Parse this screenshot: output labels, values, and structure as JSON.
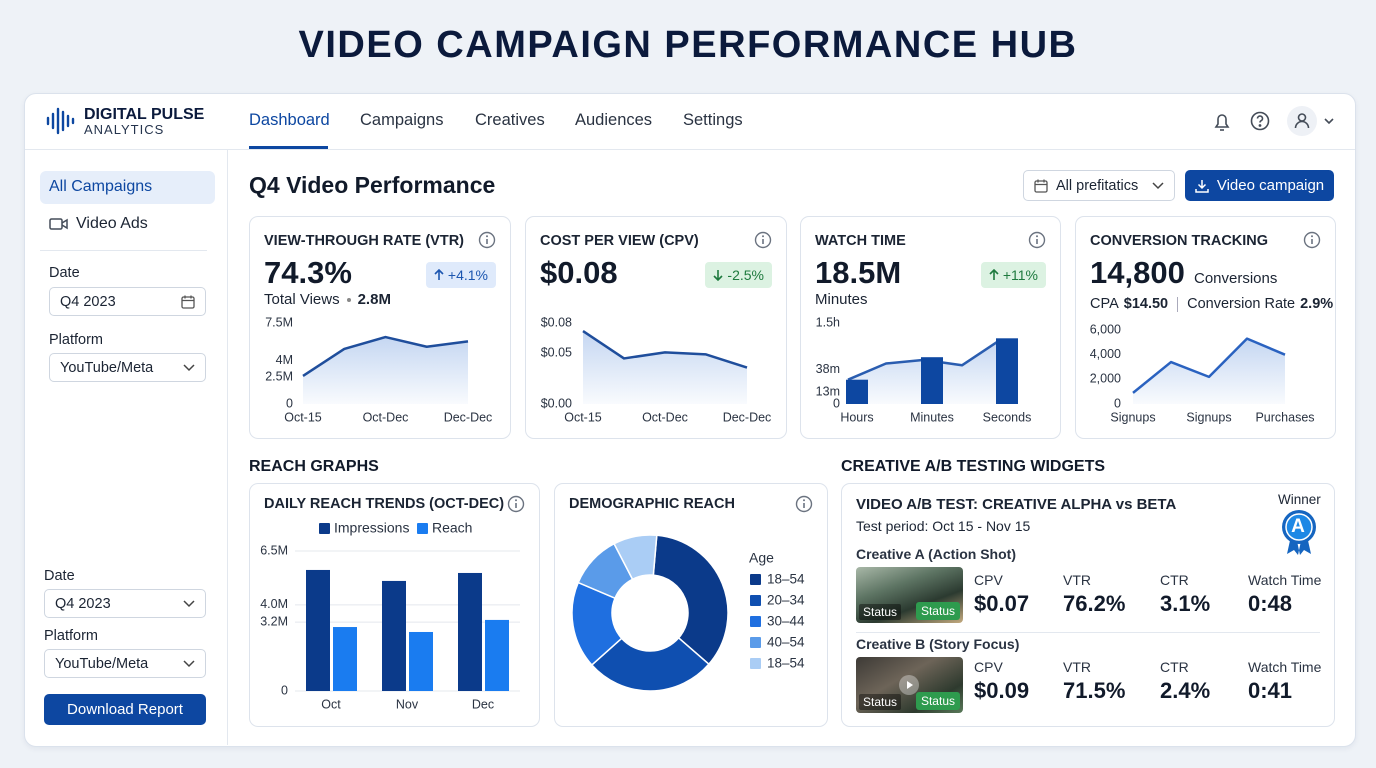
{
  "title": "VIDEO CAMPAIGN PERFORMANCE HUB",
  "header": {
    "brand": "DIGITAL PULSE",
    "brand_sub": "ANALYTICS",
    "nav": [
      "Dashboard",
      "Campaigns",
      "Creatives",
      "Audiences",
      "Settings"
    ]
  },
  "sidebar": {
    "menu": [
      "All Campaigns",
      "Video Ads"
    ],
    "filters": [
      {
        "label": "Date",
        "value": "Q4 2023"
      },
      {
        "label": "Platform",
        "value": "YouTube/Meta"
      },
      {
        "label": "Date",
        "value": "Q4 2023"
      },
      {
        "label": "Platform",
        "value": "YouTube/Meta"
      }
    ],
    "button": "Download Report"
  },
  "main": {
    "title": "Q4 Video Performance",
    "filter": "All prefitatics",
    "button": "Video campaign"
  },
  "kpis": [
    {
      "title": "VIEW-THROUGH RATE (VTR)",
      "value": "74.3%",
      "delta": "+4.1%",
      "note": "Total Views",
      "note_value": "2.8M",
      "chart": {
        "type": "line",
        "categories": [
          "Oct-15",
          null,
          "Oct-Dec",
          null,
          "Dec-Dec"
        ],
        "values": [
          2600000,
          5100000,
          6200000,
          5300000,
          5800000
        ],
        "color": "#1f4e9c",
        "ylim": [
          0,
          7500000
        ],
        "yticks": [
          0,
          {
            "value": 2500000,
            "label": "2.5M"
          },
          {
            "value": 4000000,
            "label": "4M"
          },
          {
            "value": 7500000,
            "label": "7.5M"
          }
        ]
      }
    },
    {
      "title": "COST PER VIEW (CPV)",
      "value": "$0.08",
      "delta": "-2.5%",
      "chart": {
        "type": "line",
        "categories": [
          "Oct-15",
          null,
          "Oct-Dec",
          null,
          "Dec-Dec"
        ],
        "values": [
          0.072,
          0.045,
          0.051,
          0.049,
          0.036
        ],
        "color": "#1f4e9c",
        "ylim": [
          0,
          0.08
        ],
        "yticks": [
          {
            "value": 0,
            "label": "$0.00"
          },
          {
            "value": 0.05,
            "label": "$0.05"
          },
          {
            "value": 0.08,
            "label": "$0.08"
          }
        ]
      }
    },
    {
      "title": "WATCH TIME",
      "value": "18.5M",
      "delta": "+11%",
      "note": "Minutes",
      "chart": {
        "type": "combo",
        "categories": [
          "Hours",
          "Minutes",
          "Seconds"
        ],
        "values": [
          27,
          52,
          73
        ],
        "color": "#0d47a1",
        "line_values": [
          27,
          45,
          49,
          43,
          71
        ],
        "line_color": "#2a5db0",
        "ylim": [
          0,
          90
        ],
        "yticks": [
          0,
          {
            "value": 13,
            "label": "13m"
          },
          {
            "value": 38,
            "label": "38m"
          },
          {
            "value": 90,
            "label": "1.5h"
          }
        ]
      }
    },
    {
      "title": "CONVERSION TRACKING",
      "value": "14,800",
      "unit": "Conversions",
      "cpa_label": "CPA",
      "cpa": "$14.50",
      "rate_label": "Conversion Rate",
      "rate": "2.9%",
      "chart": {
        "type": "line",
        "categories": [
          "Signups",
          null,
          "Signups",
          null,
          "Purchases"
        ],
        "values": [
          900,
          3400,
          2200,
          5300,
          4000
        ],
        "color": "#2a62c0",
        "ylim": [
          0,
          6000
        ],
        "yticks": [
          0,
          {
            "value": 2000,
            "label": "2,000"
          },
          {
            "value": 4000,
            "label": "4,000"
          },
          {
            "value": 6000,
            "label": "6,000"
          }
        ]
      }
    }
  ],
  "reach": {
    "section": "REACH GRAPHS",
    "daily": {
      "type": "bar",
      "title": "DAILY REACH TRENDS (OCT-DEC)",
      "categories": [
        "Oct",
        "Nov",
        "Dec"
      ],
      "series": [
        {
          "name": "Impressions",
          "color": "#0b3a8a",
          "values": [
            5620000,
            5110000,
            5480000
          ]
        },
        {
          "name": "Reach",
          "color": "#1a7cf0",
          "values": [
            2970000,
            2740000,
            3300000
          ]
        }
      ],
      "ylim": [
        0,
        6500000
      ],
      "yticks": [
        0,
        {
          "value": 3200000,
          "label": "3.2M"
        },
        {
          "value": 4000000,
          "label": "4.0M"
        },
        {
          "value": 6500000,
          "label": "6.5M"
        }
      ],
      "grid": true
    },
    "demographic": {
      "type": "pie",
      "title": "DEMOGRAPHIC REACH",
      "legend_title": "Age",
      "categories": [
        "18–54",
        "20–34",
        "30–44",
        "40–54",
        "18–54"
      ],
      "values": [
        35,
        27,
        18,
        11,
        9
      ],
      "colors": [
        "#0b3a8a",
        "#0f4fb0",
        "#1f6fe0",
        "#5a9be9",
        "#aacdf5"
      ]
    }
  },
  "ab": {
    "section": "CREATIVE A/B TESTING WIDGETS",
    "title": "VIDEO A/B TEST: CREATIVE ALPHA vs BETA",
    "period": "Test period: Oct 15 - Nov 15",
    "winner_label": "Winner",
    "winner": "A",
    "creatives": [
      {
        "name": "Creative A (Action Shot)",
        "status": [
          "Status",
          "Status"
        ],
        "metrics": [
          {
            "label": "CPV",
            "value": "$0.07"
          },
          {
            "label": "VTR",
            "value": "76.2%"
          },
          {
            "label": "CTR",
            "value": "3.1%"
          },
          {
            "label": "Watch Time",
            "value": "0:48"
          }
        ]
      },
      {
        "name": "Creative B (Story Focus)",
        "status": [
          "Status",
          "Status"
        ],
        "metrics": [
          {
            "label": "CPV",
            "value": "$0.09"
          },
          {
            "label": "VTR",
            "value": "71.5%"
          },
          {
            "label": "CTR",
            "value": "2.4%"
          },
          {
            "label": "Watch Time",
            "value": "0:41"
          }
        ]
      }
    ]
  }
}
